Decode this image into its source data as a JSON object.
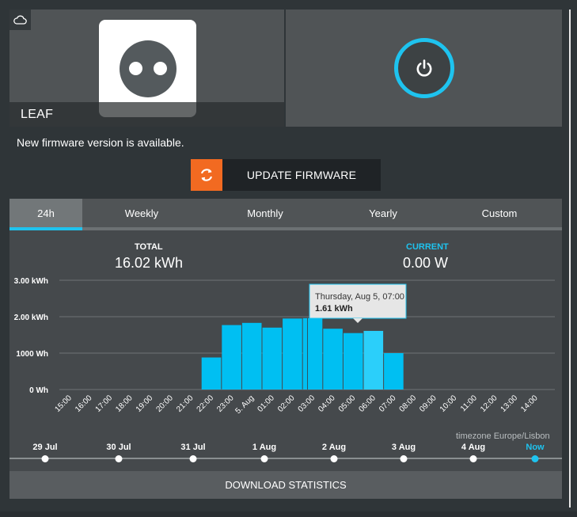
{
  "device": {
    "name": "LEAF",
    "cloud_icon": "cloud-icon",
    "socket_icon": "power-socket-icon",
    "power_icon": "power-icon"
  },
  "firmware": {
    "message": "New firmware version is available.",
    "button_label": "UPDATE FIRMWARE",
    "button_icon": "refresh-icon"
  },
  "tabs": [
    {
      "label": "24h",
      "active": true
    },
    {
      "label": "Weekly",
      "active": false
    },
    {
      "label": "Monthly",
      "active": false
    },
    {
      "label": "Yearly",
      "active": false
    },
    {
      "label": "Custom",
      "active": false
    }
  ],
  "stats": {
    "total_label": "TOTAL",
    "total_value": "16.02 kWh",
    "current_label": "CURRENT",
    "current_value": "0.00 W"
  },
  "tooltip": {
    "title": "Thursday, Aug 5, 07:00",
    "value": "1.61 kWh"
  },
  "timeline": {
    "timezone": "timezone Europe/Lisbon",
    "days": [
      "29 Jul",
      "30 Jul",
      "31 Jul",
      "1 Aug",
      "2 Aug",
      "3 Aug",
      "4 Aug",
      "Now"
    ],
    "active_index": 7
  },
  "download_label": "DOWNLOAD STATISTICS",
  "colors": {
    "accent": "#1ec3ef",
    "firmware_orange": "#f26a21",
    "background": "#2f3538",
    "panel": "#45494c"
  },
  "chart_data": {
    "type": "bar",
    "ytick_labels": [
      "0 Wh",
      "1000 Wh",
      "2.00 kWh",
      "3.00 kWh"
    ],
    "ylim": [
      0,
      3
    ],
    "yunit": "kWh",
    "categories": [
      "15:00",
      "16:00",
      "17:00",
      "18:00",
      "19:00",
      "20:00",
      "21:00",
      "22:00",
      "23:00",
      "5. Aug",
      "01:00",
      "02:00",
      "03:00",
      "04:00",
      "05:00",
      "06:00",
      "07:00",
      "08:00",
      "09:00",
      "10:00",
      "11:00",
      "12:00",
      "13:00",
      "14:00"
    ],
    "values": [
      0,
      0,
      0,
      0,
      0,
      0,
      0,
      0.88,
      1.77,
      1.83,
      1.7,
      1.95,
      1.96,
      1.67,
      1.55,
      1.61,
      1.0,
      0,
      0,
      0,
      0,
      0,
      0,
      0
    ],
    "highlight_index": 15,
    "grid": true
  }
}
